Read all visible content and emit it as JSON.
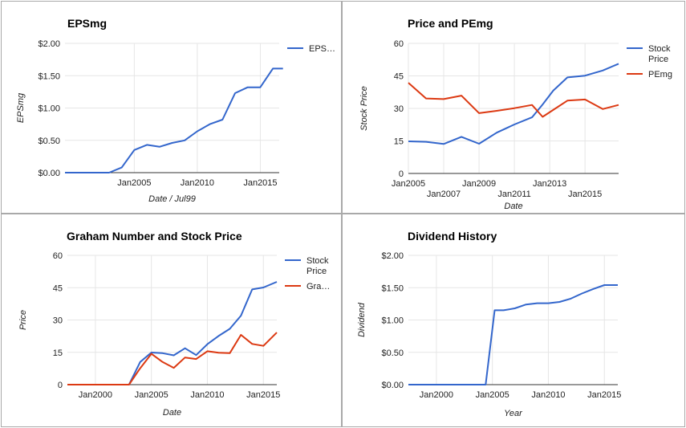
{
  "charts": [
    {
      "type": "line",
      "title": "EPSmg",
      "xlabel": "Date / Jul99",
      "ylabel": "EPSmg",
      "xlim": [
        1999.5,
        2016.5
      ],
      "ylim": [
        0,
        2
      ],
      "yticks": [
        {
          "v": 0,
          "label": "$0.00"
        },
        {
          "v": 0.5,
          "label": "$0.50"
        },
        {
          "v": 1,
          "label": "$1.00"
        },
        {
          "v": 1.5,
          "label": "$1.50"
        },
        {
          "v": 2,
          "label": "$2.00"
        }
      ],
      "xticks": [
        {
          "v": 2005,
          "label": "Jan2005"
        },
        {
          "v": 2010,
          "label": "Jan2010"
        },
        {
          "v": 2015,
          "label": "Jan2015"
        }
      ],
      "legend_position": "right",
      "series": [
        {
          "name": "EPS…",
          "color": "#3366cc",
          "x": [
            1999.5,
            2002,
            2003,
            2004,
            2005,
            2006,
            2007,
            2008,
            2009,
            2010,
            2011,
            2012,
            2013,
            2014,
            2015,
            2016,
            2016.8
          ],
          "y": [
            0,
            0,
            0,
            0.08,
            0.35,
            0.43,
            0.4,
            0.46,
            0.5,
            0.64,
            0.75,
            0.82,
            1.23,
            1.32,
            1.32,
            1.61,
            1.61
          ]
        }
      ]
    },
    {
      "type": "line",
      "title": "Price and PEmg",
      "xlabel": "Date",
      "ylabel": "Stock Price",
      "xlim": [
        2005,
        2016.9
      ],
      "ylim": [
        0,
        60
      ],
      "yticks": [
        {
          "v": 0,
          "label": "0"
        },
        {
          "v": 15,
          "label": "15"
        },
        {
          "v": 30,
          "label": "30"
        },
        {
          "v": 45,
          "label": "45"
        },
        {
          "v": 60,
          "label": "60"
        }
      ],
      "xticks": [
        {
          "v": 2005,
          "label": "Jan2005",
          "row": 0
        },
        {
          "v": 2007,
          "label": "Jan2007",
          "row": 1
        },
        {
          "v": 2009,
          "label": "Jan2009",
          "row": 0
        },
        {
          "v": 2011,
          "label": "Jan2011",
          "row": 1
        },
        {
          "v": 2013,
          "label": "Jan2013",
          "row": 0
        },
        {
          "v": 2015,
          "label": "Jan2015",
          "row": 1
        }
      ],
      "legend_position": "right",
      "series": [
        {
          "name": "Stock Price",
          "color": "#3366cc",
          "x": [
            2005,
            2006,
            2007,
            2008,
            2009,
            2010,
            2011,
            2012,
            2012.6,
            2013.2,
            2014,
            2015,
            2016,
            2016.9
          ],
          "y": [
            14.8,
            14.6,
            13.6,
            16.9,
            13.7,
            18.8,
            22.6,
            25.9,
            31.8,
            38.2,
            44.3,
            45.1,
            47.5,
            50.6
          ]
        },
        {
          "name": "PEmg",
          "color": "#dc3912",
          "x": [
            2005,
            2006,
            2007,
            2008,
            2009,
            2010,
            2011,
            2012,
            2012.6,
            2013.2,
            2014,
            2015,
            2016,
            2016.9
          ],
          "y": [
            41.8,
            34.6,
            34.3,
            35.9,
            27.8,
            28.9,
            30.1,
            31.6,
            26.1,
            29.3,
            33.6,
            34.1,
            29.7,
            31.6
          ]
        }
      ]
    },
    {
      "type": "line",
      "title": "Graham Number and Stock Price",
      "xlabel": "Date",
      "ylabel": "Price",
      "xlim": [
        1997.5,
        2016.2
      ],
      "ylim": [
        0,
        60
      ],
      "yticks": [
        {
          "v": 0,
          "label": "0"
        },
        {
          "v": 15,
          "label": "15"
        },
        {
          "v": 30,
          "label": "30"
        },
        {
          "v": 45,
          "label": "45"
        },
        {
          "v": 60,
          "label": "60"
        }
      ],
      "xticks": [
        {
          "v": 2000,
          "label": "Jan2000"
        },
        {
          "v": 2005,
          "label": "Jan2005"
        },
        {
          "v": 2010,
          "label": "Jan2010"
        },
        {
          "v": 2015,
          "label": "Jan2015"
        }
      ],
      "legend_position": "right",
      "series": [
        {
          "name": "Stock Price",
          "color": "#3366cc",
          "x": [
            1997.5,
            2002,
            2003,
            2004,
            2005,
            2006,
            2007,
            2008,
            2009,
            2010,
            2011,
            2012,
            2013,
            2014,
            2015,
            2016.2
          ],
          "y": [
            0,
            0,
            0,
            10.5,
            14.9,
            14.6,
            13.6,
            16.9,
            13.7,
            18.8,
            22.6,
            25.9,
            32,
            44.2,
            45.1,
            47.7
          ]
        },
        {
          "name": "Gra…",
          "color": "#dc3912",
          "x": [
            1997.5,
            2002,
            2003,
            2004,
            2005,
            2006,
            2007,
            2008,
            2009,
            2010,
            2011,
            2012,
            2013,
            2014,
            2015,
            2016.2
          ],
          "y": [
            0,
            0,
            0,
            7.6,
            14.3,
            10.5,
            7.8,
            12.6,
            11.9,
            15.5,
            14.8,
            14.6,
            23.1,
            18.9,
            18,
            24.2
          ]
        }
      ]
    },
    {
      "type": "line",
      "title": "Dividend History",
      "xlabel": "Year",
      "ylabel": "Dividend",
      "xlim": [
        1997.5,
        2016.2
      ],
      "ylim": [
        0,
        2
      ],
      "yticks": [
        {
          "v": 0,
          "label": "$0.00"
        },
        {
          "v": 0.5,
          "label": "$0.50"
        },
        {
          "v": 1,
          "label": "$1.00"
        },
        {
          "v": 1.5,
          "label": "$1.50"
        },
        {
          "v": 2,
          "label": "$2.00"
        }
      ],
      "xticks": [
        {
          "v": 2000,
          "label": "Jan2000"
        },
        {
          "v": 2005,
          "label": "Jan2005"
        },
        {
          "v": 2010,
          "label": "Jan2010"
        },
        {
          "v": 2015,
          "label": "Jan2015"
        }
      ],
      "legend_position": "none",
      "series": [
        {
          "name": "",
          "color": "#3366cc",
          "x": [
            1997.5,
            2004.4,
            2005.2,
            2006,
            2007,
            2008,
            2009,
            2010,
            2011,
            2012,
            2013,
            2014,
            2015,
            2016.2
          ],
          "y": [
            0,
            0,
            1.15,
            1.15,
            1.18,
            1.24,
            1.26,
            1.26,
            1.28,
            1.33,
            1.41,
            1.48,
            1.54,
            1.54
          ]
        }
      ]
    }
  ]
}
